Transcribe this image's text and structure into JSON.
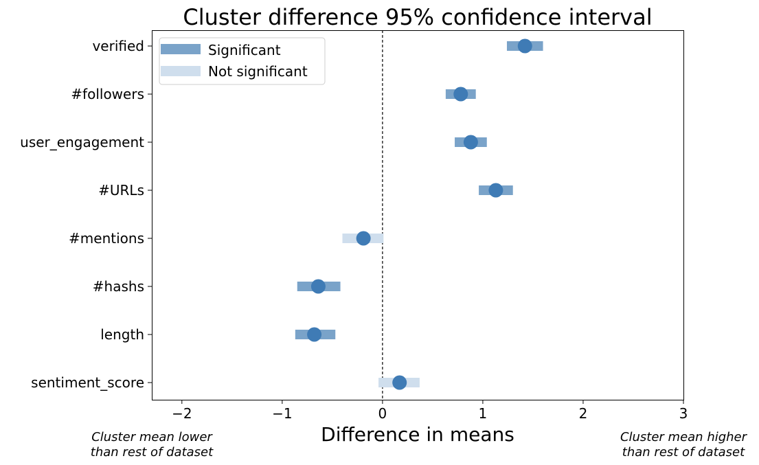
{
  "chart_data": {
    "type": "interval",
    "title": "Cluster difference 95% confidence interval",
    "xlabel": "Difference in means",
    "ylabel": "",
    "xlim": [
      -2.3,
      3.0
    ],
    "x_ticks": [
      -2,
      -1,
      0,
      1,
      2,
      3
    ],
    "x_tick_labels": [
      "−2",
      "−1",
      "0",
      "1",
      "2",
      "3"
    ],
    "reference_line": 0,
    "side_notes": {
      "left": [
        "Cluster mean lower",
        "than rest of dataset"
      ],
      "right": [
        "Cluster mean higher",
        "than rest of dataset"
      ]
    },
    "legend": {
      "position": "top-left",
      "entries": [
        {
          "label": "Significant",
          "color": "#7aa3c9"
        },
        {
          "label": "Not significant",
          "color": "#cfdeed"
        }
      ]
    },
    "colors": {
      "point": "#3f7bb5",
      "significant": "#7aa3c9",
      "not_significant": "#cfdeed"
    },
    "features": [
      {
        "name": "verified",
        "mean": 1.42,
        "lo": 1.24,
        "hi": 1.6,
        "significant": true
      },
      {
        "name": "#followers",
        "mean": 0.78,
        "lo": 0.63,
        "hi": 0.93,
        "significant": true
      },
      {
        "name": "user_engagement",
        "mean": 0.88,
        "lo": 0.72,
        "hi": 1.04,
        "significant": true
      },
      {
        "name": "#URLs",
        "mean": 1.13,
        "lo": 0.96,
        "hi": 1.3,
        "significant": true
      },
      {
        "name": "#mentions",
        "mean": -0.19,
        "lo": -0.4,
        "hi": 0.01,
        "significant": false
      },
      {
        "name": "#hashs",
        "mean": -0.64,
        "lo": -0.85,
        "hi": -0.42,
        "significant": true
      },
      {
        "name": "length",
        "mean": -0.68,
        "lo": -0.87,
        "hi": -0.47,
        "significant": true
      },
      {
        "name": "sentiment_score",
        "mean": 0.17,
        "lo": -0.04,
        "hi": 0.37,
        "significant": false
      }
    ]
  }
}
